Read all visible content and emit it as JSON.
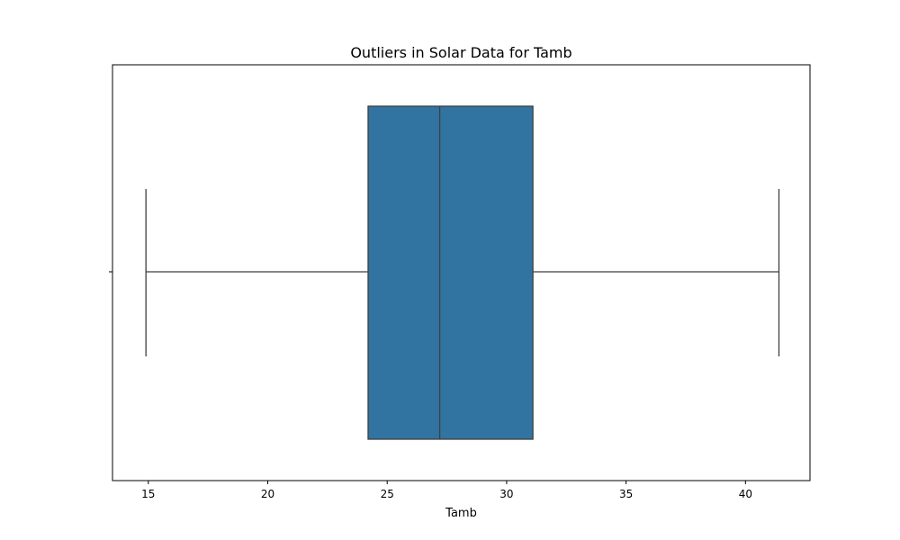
{
  "chart_data": {
    "type": "boxplot",
    "title": "Outliers in Solar Data for Tamb",
    "xlabel": "Tamb",
    "ylabel": "",
    "orientation": "horizontal",
    "xlim": [
      13.5,
      42.7
    ],
    "xticks": [
      15,
      20,
      25,
      30,
      35,
      40
    ],
    "box": {
      "whisker_low": 14.9,
      "q1": 24.2,
      "median": 27.2,
      "q3": 31.1,
      "whisker_high": 41.4
    },
    "outliers": [],
    "box_color": "#3274a1",
    "line_color": "#3f3f3f",
    "grid": false
  }
}
